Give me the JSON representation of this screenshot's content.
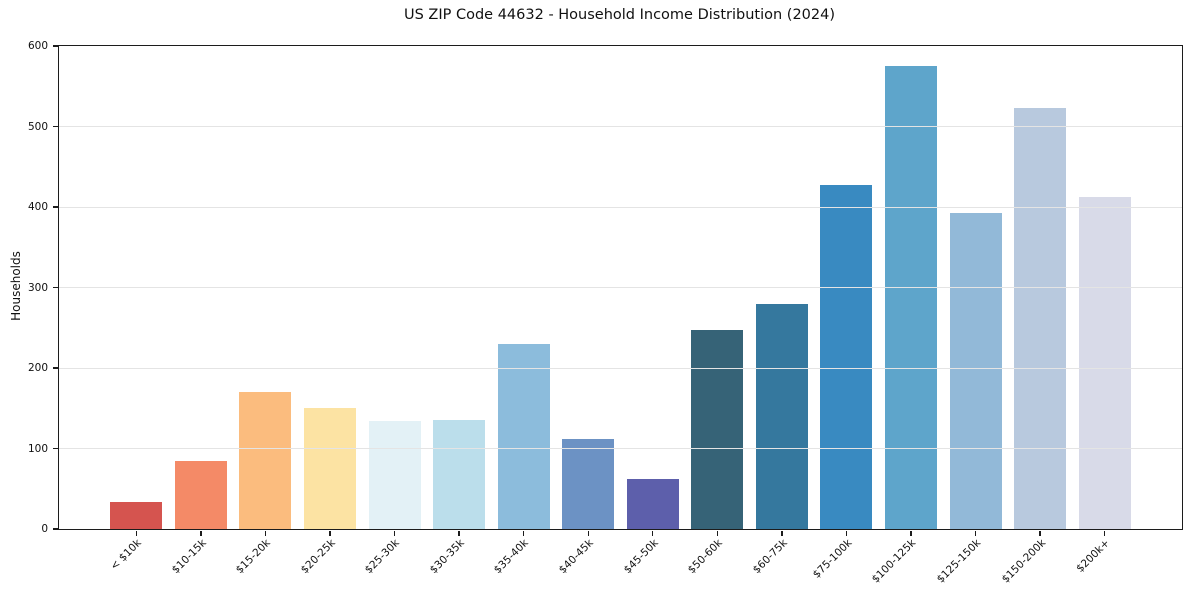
{
  "chart_data": {
    "type": "bar",
    "title": "US ZIP Code 44632 - Household Income Distribution (2024)",
    "ylabel": "Households",
    "xlabel": "",
    "categories": [
      "< $10k",
      "$10-15k",
      "$15-20k",
      "$20-25k",
      "$25-30k",
      "$30-35k",
      "$35-40k",
      "$40-45k",
      "$45-50k",
      "$50-60k",
      "$60-75k",
      "$75-100k",
      "$100-125k",
      "$125-150k",
      "$150-200k",
      "$200k+"
    ],
    "values": [
      34,
      84,
      170,
      150,
      134,
      136,
      230,
      112,
      62,
      247,
      280,
      427,
      575,
      393,
      523,
      412
    ],
    "bar_colors": [
      "#d5544f",
      "#f48a67",
      "#fbbc7e",
      "#fce3a3",
      "#e3f1f6",
      "#bbdeeb",
      "#8cbcdc",
      "#6c92c4",
      "#5d5fab",
      "#366377",
      "#35789e",
      "#398ac1",
      "#5ea5cb",
      "#92b9d8",
      "#b8c9de",
      "#d8dae8"
    ],
    "ylim": [
      0,
      600
    ],
    "yticks": [
      0,
      100,
      200,
      300,
      400,
      500,
      600
    ],
    "grid": "horizontal",
    "legend": "none",
    "background_color": "#ffffff",
    "axis_color": "#1c1c1c",
    "gridline_color": "#e4e4e4"
  }
}
